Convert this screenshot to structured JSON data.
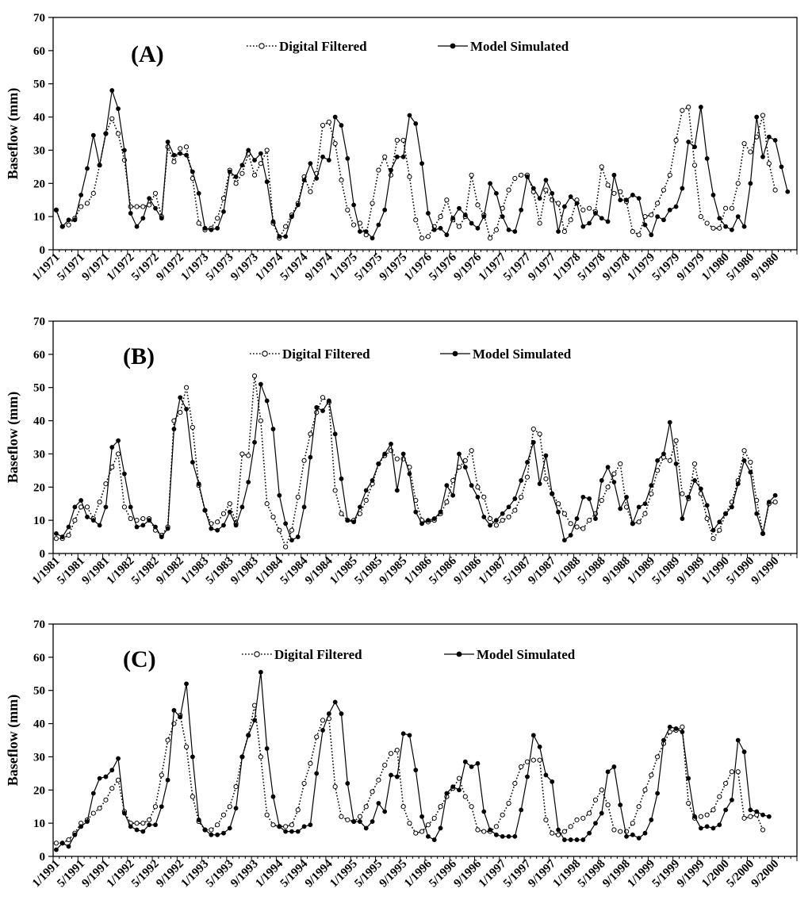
{
  "colors": {
    "line": "#000000",
    "background": "#ffffff"
  },
  "legend": {
    "digital": "Digital Filtered",
    "model": "Model Simulated"
  },
  "chart_data": [
    {
      "type": "line",
      "panel_label": "(A)",
      "ylabel": "Baseflow (mm)",
      "ylim": [
        0,
        70
      ],
      "yticks": [
        0,
        10,
        20,
        30,
        40,
        50,
        60,
        70
      ],
      "xtick_labels": [
        "1/1971",
        "5/1971",
        "9/1971",
        "1/1972",
        "5/1972",
        "9/1972",
        "1/1973",
        "5/1973",
        "9/1973",
        "1/1974",
        "5/1974",
        "9/1974",
        "1/1975",
        "5/1975",
        "9/1975",
        "1/1976",
        "5/1976",
        "9/1976",
        "1/1977",
        "5/1977",
        "9/1977",
        "1/1978",
        "5/1978",
        "9/1978",
        "1/1979",
        "5/1979",
        "9/1979",
        "1/1980",
        "5/1980",
        "9/1980"
      ],
      "n_months": 120,
      "series": [
        {
          "name": "Digital Filtered",
          "style": "dotted-open-circle",
          "values": [
            12,
            7,
            7.5,
            9.5,
            13,
            14,
            17,
            25.5,
            35,
            39.5,
            35,
            27,
            13,
            13,
            13,
            13.5,
            17,
            10,
            31,
            26.5,
            30.5,
            31,
            21.5,
            8,
            6,
            6.5,
            9.5,
            15.5,
            24,
            20,
            23,
            29,
            22.5,
            26,
            30,
            8,
            3.5,
            7,
            10.5,
            14,
            22,
            17.5,
            23,
            37.5,
            38.5,
            32,
            21,
            12,
            7.5,
            8,
            4.5,
            14,
            24,
            28,
            22.5,
            33,
            33,
            22,
            9,
            3.5,
            4,
            7,
            10,
            15,
            9,
            7,
            10,
            22.5,
            13.5,
            10.5,
            3.5,
            6,
            12.5,
            18,
            21.5,
            22.5,
            22.5,
            17.5,
            8,
            18,
            15,
            14,
            5.5,
            9,
            15,
            12,
            12.5,
            11.5,
            25,
            19.5,
            17,
            17.5,
            14.5,
            5.5,
            4.5,
            10,
            10.5,
            14,
            18,
            22.5,
            33,
            42,
            43,
            25.5,
            10,
            8,
            6.5,
            6.5,
            12.5,
            12.5,
            20,
            32,
            29.5,
            34,
            40.5,
            26,
            18
          ]
        },
        {
          "name": "Model Simulated",
          "style": "solid-filled-circle",
          "values": [
            12,
            7,
            9,
            9,
            16.5,
            24.5,
            34.5,
            25.5,
            35,
            48,
            42.5,
            30,
            11,
            7,
            9.5,
            15.5,
            12.5,
            9.5,
            32.5,
            28.5,
            29,
            28.5,
            23.5,
            17,
            6.5,
            6,
            6.5,
            11.5,
            23.5,
            22,
            25.5,
            30,
            27,
            29,
            20.5,
            8.5,
            4,
            4,
            10,
            13.5,
            21,
            26,
            21.5,
            28,
            27,
            40,
            37.5,
            27.5,
            13.5,
            5.5,
            5.5,
            3.5,
            7.5,
            12,
            24,
            28,
            28,
            40.5,
            38,
            26,
            11,
            6,
            6.5,
            4.5,
            9.5,
            12.5,
            10.5,
            8,
            6.5,
            10,
            20,
            17,
            10,
            6,
            5.5,
            12,
            22,
            18.5,
            15.5,
            21,
            17,
            5.5,
            13,
            16,
            14,
            7,
            8,
            11,
            9.5,
            8.5,
            22.5,
            15,
            15,
            16.5,
            15.5,
            7.5,
            4.5,
            10,
            9,
            12,
            13,
            18.5,
            32.5,
            31,
            43,
            27.5,
            16.5,
            9.5,
            7,
            6,
            10,
            7,
            20,
            40,
            28,
            34,
            33,
            25,
            17.5
          ]
        }
      ]
    },
    {
      "type": "line",
      "panel_label": "(B)",
      "ylabel": "Baseflow (mm)",
      "ylim": [
        0,
        70
      ],
      "yticks": [
        0,
        10,
        20,
        30,
        40,
        50,
        60,
        70
      ],
      "xtick_labels": [
        "1/1981",
        "5/1981",
        "9/1981",
        "1/1982",
        "5/1982",
        "9/1982",
        "1/1983",
        "5/1983",
        "9/1983",
        "1/1984",
        "5/1984",
        "9/1984",
        "1/1985",
        "5/1985",
        "9/1985",
        "1/1986",
        "5/1986",
        "9/1986",
        "1/1987",
        "5/1987",
        "9/1987",
        "1/1988",
        "5/1988",
        "9/1988",
        "1/1989",
        "5/1989",
        "9/1989",
        "1/1990",
        "5/1990",
        "9/1990"
      ],
      "n_months": 120,
      "series": [
        {
          "name": "Digital Filtered",
          "style": "dotted-open-circle",
          "values": [
            4.5,
            4.5,
            5.5,
            10,
            14,
            14,
            10.5,
            15.5,
            21,
            26,
            30,
            14,
            10.5,
            10,
            10.5,
            10.5,
            7,
            5.5,
            8,
            40,
            42.5,
            50,
            38,
            20.5,
            13,
            9,
            9.5,
            12,
            15,
            9,
            30,
            29.5,
            53.5,
            40,
            15,
            11,
            7,
            2,
            7,
            17,
            28,
            36,
            42.5,
            47,
            45.5,
            19,
            12,
            10,
            10,
            12,
            16,
            21,
            27,
            29.5,
            31,
            28.5,
            28.5,
            26,
            16,
            10,
            9.5,
            10,
            12,
            15.5,
            22,
            26,
            28,
            31,
            20,
            17,
            10.5,
            8.5,
            10,
            11,
            13,
            17,
            23,
            37.5,
            36,
            22.5,
            18,
            15,
            12,
            9,
            8,
            7.5,
            10,
            12,
            16,
            20,
            24,
            27,
            14,
            9,
            9.5,
            12,
            18,
            25,
            29,
            28,
            34,
            18,
            16.5,
            27,
            18,
            10.5,
            4.5,
            7,
            12,
            15.5,
            22,
            31,
            27.5,
            16,
            6,
            15,
            15.5
          ]
        },
        {
          "name": "Model Simulated",
          "style": "solid-filled-circle",
          "values": [
            6,
            5,
            8,
            14,
            16,
            11,
            10,
            8.5,
            14,
            32,
            34,
            24,
            14,
            8,
            8.5,
            10,
            8,
            5,
            7.5,
            37.5,
            47,
            43.5,
            27.5,
            21,
            13,
            7.5,
            7,
            8.5,
            12.5,
            8.5,
            14,
            21.5,
            33.5,
            51,
            46,
            37.5,
            17.5,
            9,
            4,
            5,
            14,
            29,
            44,
            43,
            46,
            36,
            22.5,
            10,
            9.5,
            14,
            19,
            22,
            27,
            30,
            33,
            19,
            30,
            24,
            12.5,
            9,
            10,
            10.5,
            12.5,
            20.5,
            17.5,
            30,
            26,
            20.5,
            17,
            11,
            8.5,
            10,
            12,
            14,
            16.5,
            22,
            27.5,
            33.5,
            21,
            29.5,
            18,
            12.5,
            4,
            5.5,
            10.5,
            17,
            16.5,
            10.5,
            22,
            26,
            21.5,
            13.5,
            17,
            9,
            14,
            15,
            20.5,
            28,
            30,
            39.5,
            27,
            10.5,
            17,
            22,
            19.5,
            14.5,
            7,
            9.5,
            12,
            14,
            21,
            28,
            24.5,
            12,
            6,
            15.5,
            17.5
          ]
        }
      ]
    },
    {
      "type": "line",
      "panel_label": "(C)",
      "ylabel": "Baseflow (mm)",
      "ylim": [
        0,
        70
      ],
      "yticks": [
        0,
        10,
        20,
        30,
        40,
        50,
        60,
        70
      ],
      "xtick_labels": [
        "1/1991",
        "5/1991",
        "9/1991",
        "1/1992",
        "5/1992",
        "9/1992",
        "1/1993",
        "5/1993",
        "9/1993",
        "1/1994",
        "5/1994",
        "9/1994",
        "1/1995",
        "5/1995",
        "9/1995",
        "1/1996",
        "5/1996",
        "9/1996",
        "1/1997",
        "5/1997",
        "9/1997",
        "1/1998",
        "5/1998",
        "9/1998",
        "1/1999",
        "5/1999",
        "9/1999",
        "1/2000",
        "5/2000",
        "9/2000"
      ],
      "n_months": 120,
      "series": [
        {
          "name": "Digital Filtered",
          "style": "dotted-open-circle",
          "values": [
            4,
            4,
            5,
            7,
            10,
            11,
            13,
            14.5,
            17,
            20.5,
            23,
            13.5,
            10,
            10,
            10,
            11,
            15,
            24.5,
            35,
            40,
            42.5,
            33,
            18,
            10.5,
            8,
            8,
            9.5,
            12.5,
            15,
            21,
            30,
            36.5,
            45.5,
            30,
            12.5,
            9.5,
            9,
            9,
            9.5,
            14,
            22,
            28,
            36,
            41,
            41.5,
            21,
            12,
            11,
            10.5,
            12,
            15,
            19.5,
            23,
            27.5,
            31,
            32,
            15,
            10,
            7,
            7.5,
            9.5,
            11.5,
            15,
            18,
            20.5,
            23.5,
            18,
            15,
            8,
            7.5,
            7.5,
            9,
            12.5,
            16,
            22,
            27,
            28.5,
            29,
            29,
            11,
            7,
            6.5,
            7.5,
            9,
            11,
            11.5,
            13,
            17,
            20,
            15.5,
            8,
            7.5,
            7.5,
            10,
            15,
            20,
            24.5,
            30,
            34,
            37.5,
            38,
            39,
            16,
            11.5,
            12,
            12.5,
            14,
            18,
            22,
            25.5,
            25.5,
            11.5,
            12,
            12.5,
            8
          ]
        },
        {
          "name": "Model Simulated",
          "style": "solid-filled-circle",
          "values": [
            2,
            4,
            3,
            6.5,
            9,
            10.5,
            19,
            23.5,
            24,
            26,
            29.5,
            13,
            9,
            8,
            7.5,
            9.5,
            9.5,
            15,
            23,
            44,
            42,
            52,
            30,
            11,
            8,
            6.5,
            6.5,
            7,
            8.5,
            14.5,
            30,
            36.5,
            41,
            55.5,
            32.5,
            18,
            9,
            7.5,
            7.5,
            7.5,
            9,
            9.5,
            25,
            38,
            43,
            46.5,
            43,
            22,
            10.5,
            10.5,
            8.5,
            10.5,
            16,
            13.5,
            24.5,
            24,
            37,
            36.5,
            26,
            12,
            6,
            5,
            8.5,
            19,
            21,
            20,
            28.5,
            27,
            28,
            13.5,
            8,
            6.5,
            6,
            6,
            6,
            14,
            24,
            36.5,
            33,
            24.5,
            22.5,
            8,
            5,
            5,
            5,
            5,
            7,
            10,
            13,
            25.5,
            27,
            15.5,
            6,
            6.5,
            5.5,
            7,
            11,
            19,
            35,
            39,
            38.5,
            37.5,
            23.5,
            12,
            8.5,
            9,
            8.5,
            9.5,
            14,
            17,
            35,
            31.5,
            14,
            13.5,
            12.5,
            12
          ]
        }
      ]
    }
  ]
}
